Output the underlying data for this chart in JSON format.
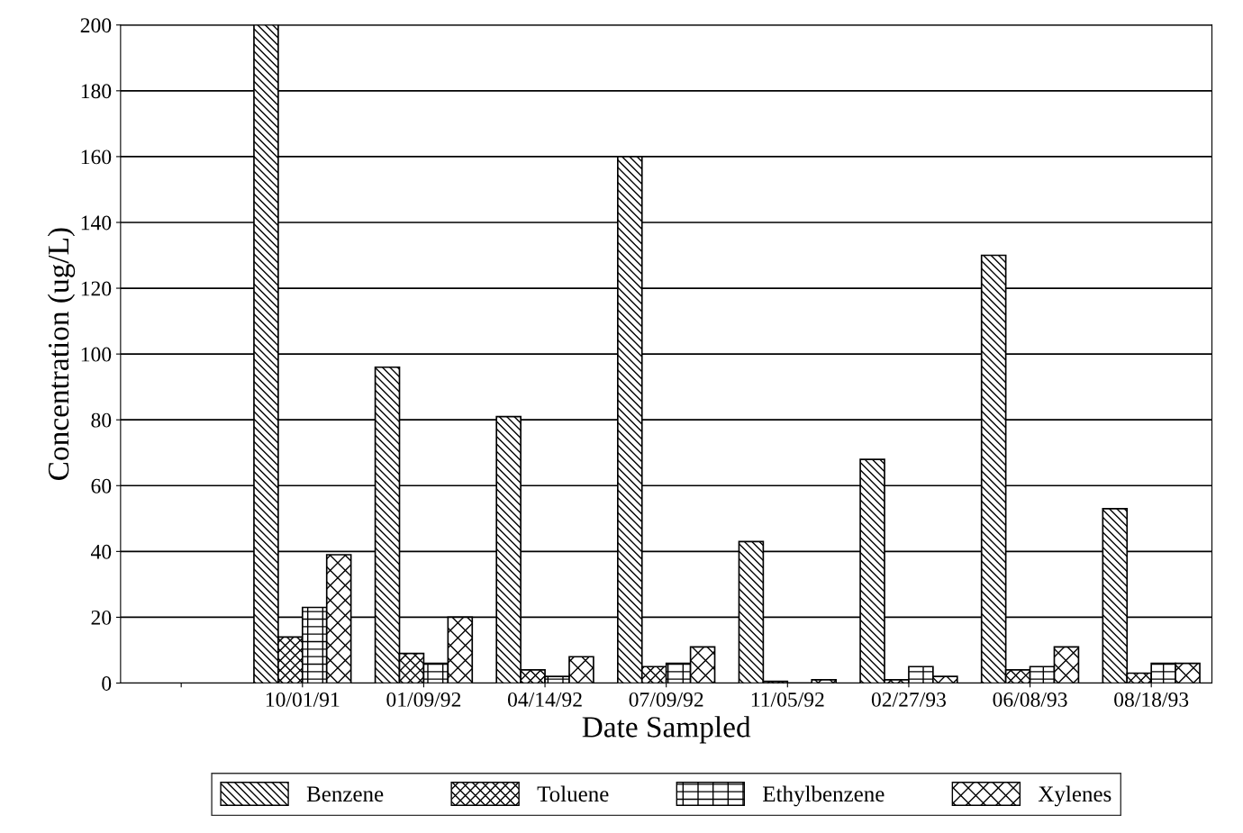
{
  "chart_data": {
    "type": "bar",
    "xlabel": "Date Sampled",
    "ylabel": "Concentration (ug/L)",
    "categories": [
      null,
      "10/01/91",
      "01/09/92",
      "04/14/92",
      "07/09/92",
      "11/05/92",
      "02/27/93",
      "06/08/93",
      "08/18/93"
    ],
    "series": [
      {
        "name": "Benzene",
        "color": "#000000",
        "values": [
          null,
          200,
          96,
          81,
          160,
          43,
          68,
          130,
          53
        ]
      },
      {
        "name": "Toluene",
        "color": "#000000",
        "values": [
          null,
          14,
          9,
          4,
          5,
          0.5,
          1,
          4,
          3
        ]
      },
      {
        "name": "Ethylbenzene",
        "color": "#000000",
        "values": [
          null,
          23,
          6,
          2,
          6,
          0,
          5,
          5,
          6
        ]
      },
      {
        "name": "Xylenes",
        "color": "#000000",
        "values": [
          null,
          39,
          20,
          8,
          11,
          1,
          2,
          11,
          6
        ]
      }
    ],
    "ylim": [
      0,
      200
    ],
    "yticks": [
      0,
      20,
      40,
      60,
      80,
      100,
      120,
      140,
      160,
      180,
      200
    ],
    "grid": "y",
    "legend": "bottom"
  }
}
